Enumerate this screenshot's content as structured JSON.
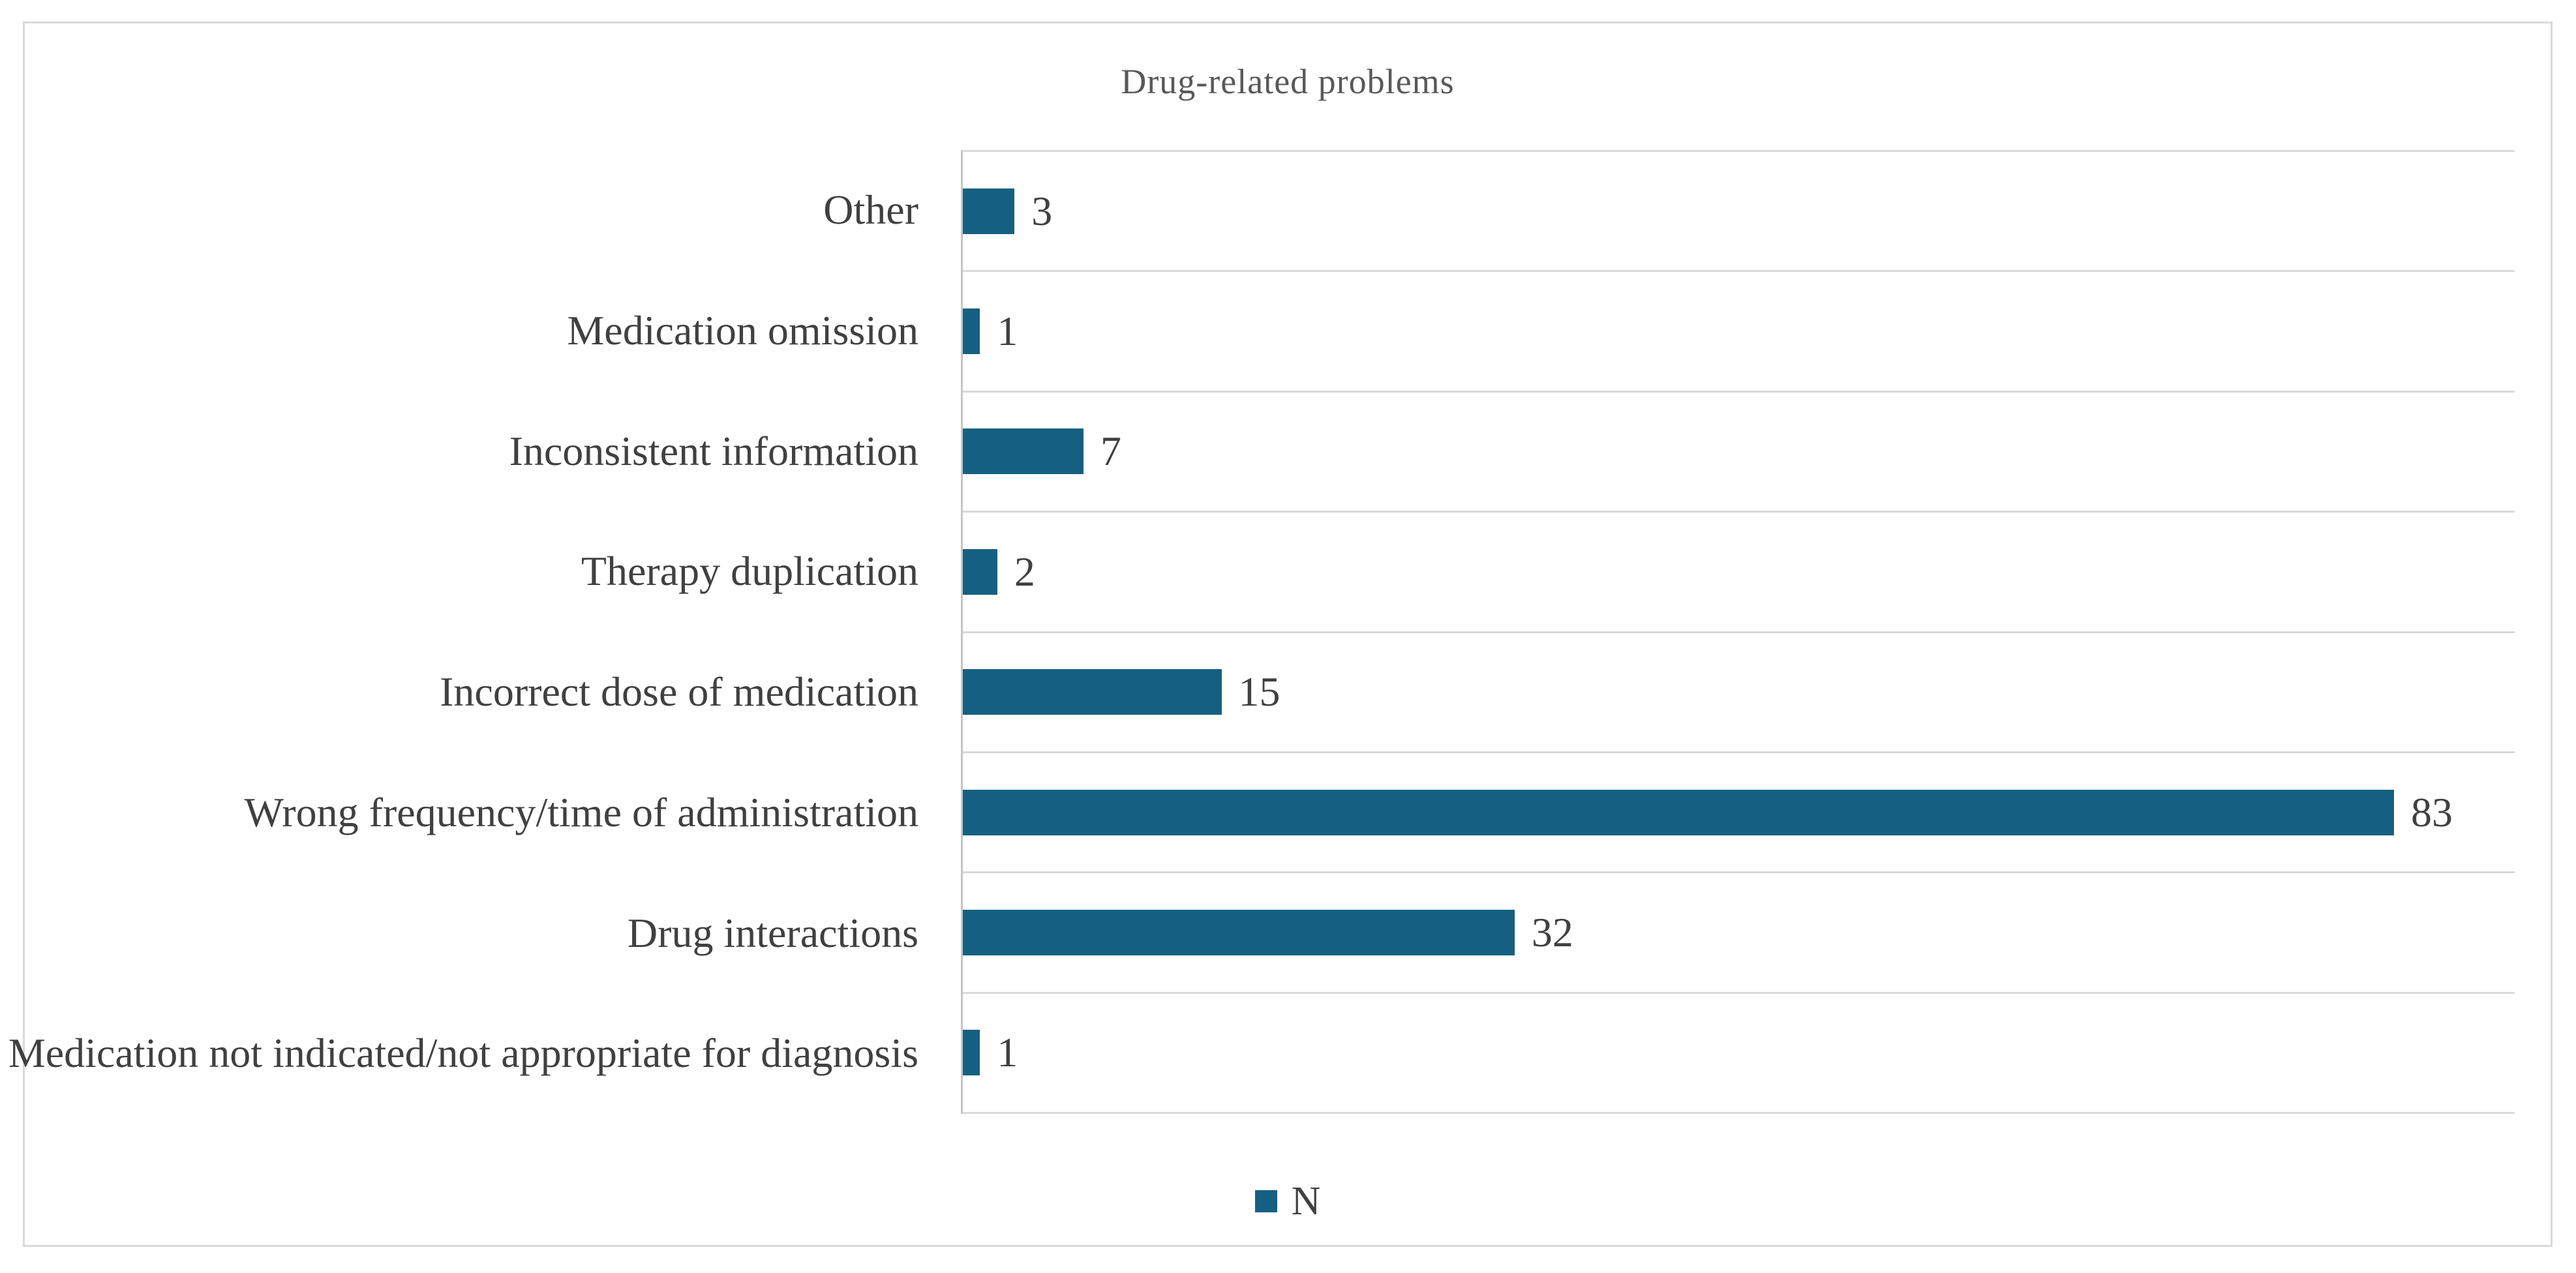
{
  "chart_data": {
    "type": "bar",
    "orientation": "horizontal",
    "title": "Drug-related problems",
    "categories": [
      "Other",
      "Medication omission",
      "Inconsistent information",
      "Therapy duplication",
      "Incorrect dose of medication",
      "Wrong frequency/time of administration",
      "Drug interactions",
      "Medication not indicated/not appropriate for diagnosis"
    ],
    "values": [
      3,
      1,
      7,
      2,
      15,
      83,
      32,
      1
    ],
    "series": [
      {
        "name": "N",
        "values": [
          3,
          1,
          7,
          2,
          15,
          83,
          32,
          1
        ]
      }
    ],
    "xlabel": "",
    "ylabel": "",
    "xlim": [
      0,
      90
    ],
    "grid": true,
    "data_labels_shown": true,
    "legend": {
      "label": "N",
      "position": "bottom"
    },
    "colors": {
      "bar": "#156082",
      "gridline": "#D9D9D9",
      "axis_line": "#C6C6C6",
      "title_text": "#595959",
      "label_text": "#404040",
      "figure_border": "#D9D9D9",
      "background": "#FFFFFF"
    }
  }
}
